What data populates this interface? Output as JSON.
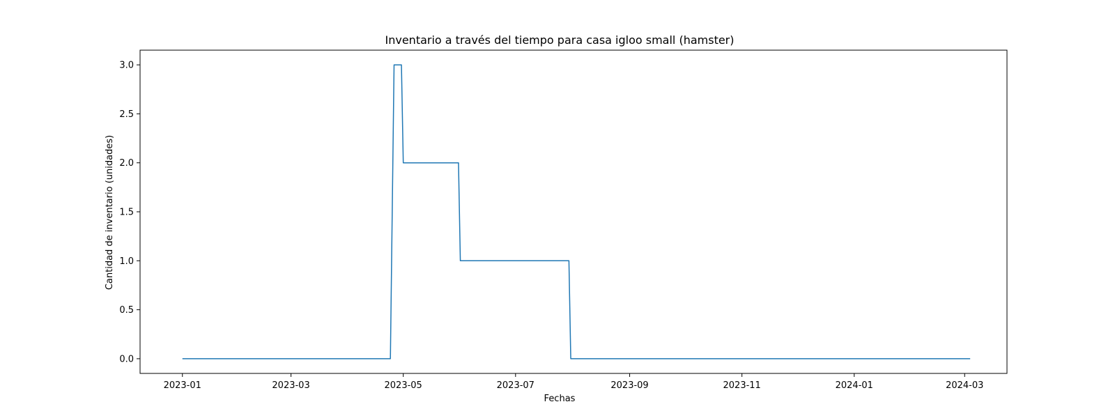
{
  "chart_data": {
    "type": "line",
    "title": "Inventario a través del tiempo para casa igloo small (hamster)",
    "xlabel": "Fechas",
    "ylabel": "Cantidad de inventario (unidades)",
    "x_axis": "date",
    "xlim": [
      "2022-12-09",
      "2024-03-24"
    ],
    "ylim": [
      -0.15,
      3.15
    ],
    "x_ticks": [
      "2023-01",
      "2023-03",
      "2023-05",
      "2023-07",
      "2023-09",
      "2023-11",
      "2024-01",
      "2024-03"
    ],
    "y_ticks": [
      "0.0",
      "0.5",
      "1.0",
      "1.5",
      "2.0",
      "2.5",
      "3.0"
    ],
    "grid": false,
    "colors": {
      "line": "#1f77b4",
      "axes": "#000000",
      "background": "#ffffff"
    },
    "series": [
      {
        "x": [
          "2023-01-01",
          "2023-04-24",
          "2023-04-26",
          "2023-04-30",
          "2023-05-01",
          "2023-05-31",
          "2023-06-01",
          "2023-07-30",
          "2023-07-31",
          "2024-03-04"
        ],
        "y": [
          0,
          0,
          3,
          3,
          2,
          2,
          1,
          1,
          0,
          0
        ]
      }
    ]
  }
}
